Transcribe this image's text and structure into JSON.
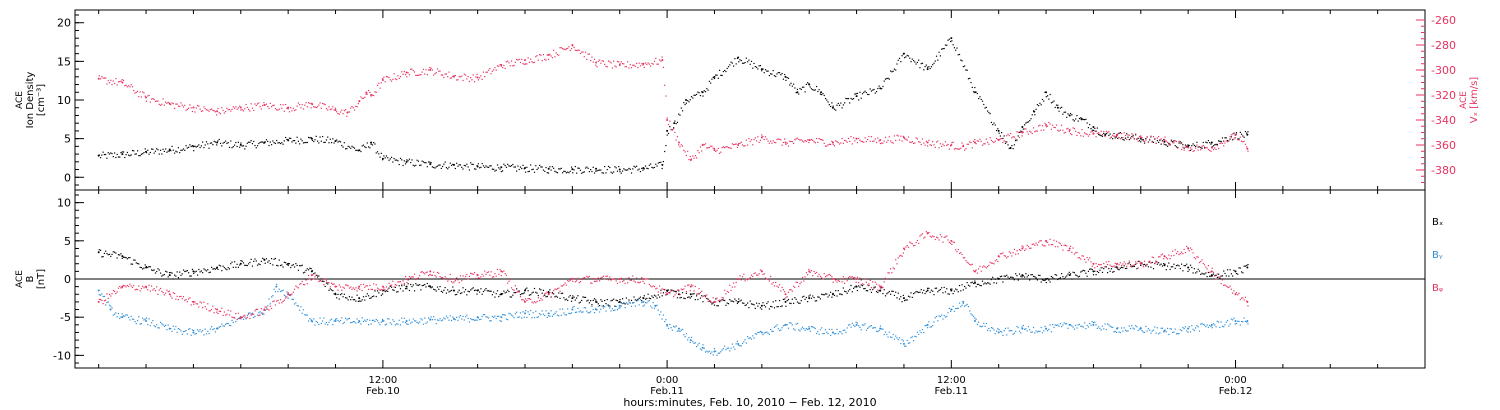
{
  "chart_data": [
    {
      "type": "scatter",
      "panel": "top",
      "left_axis": {
        "label_lines": [
          "ACE",
          "Ion Density",
          "[cm⁻³]"
        ],
        "ylim": [
          -1,
          21
        ],
        "major_ticks": [
          0,
          5,
          10,
          15,
          20
        ],
        "minor_step": 1
      },
      "right_axis": {
        "label_lines": [
          "ACE",
          "Vₓ [km/s]"
        ],
        "ylim": [
          -392,
          -256
        ],
        "major_ticks": [
          -380,
          -360,
          -340,
          -320,
          -300,
          -280,
          -260
        ],
        "minor_step": 5,
        "color": "#e8335f"
      },
      "series": [
        {
          "key": "density",
          "axis": "left",
          "color": "#000000",
          "x_hours": [
            0,
            1,
            2,
            3,
            4,
            5,
            6,
            7,
            8,
            9,
            10,
            11,
            11.5,
            12,
            13,
            14,
            15,
            16,
            17,
            18,
            19,
            20,
            21,
            22,
            23,
            23.8,
            24,
            24.3,
            24.8,
            25.5,
            26,
            27,
            28,
            29,
            29.5,
            30,
            30.5,
            31,
            32,
            33,
            34,
            35,
            36,
            37,
            38,
            38.5,
            39,
            39.5,
            40,
            40.5,
            41,
            41.5,
            42,
            42.5,
            43,
            44,
            45,
            46,
            47,
            48,
            48.5
          ],
          "y": [
            2.8,
            3,
            3.3,
            3.6,
            4,
            4.5,
            4.2,
            4.5,
            4.8,
            5,
            4.7,
            3.5,
            4.5,
            2.4,
            2,
            1.7,
            1.6,
            1.4,
            1.3,
            1.2,
            1.1,
            1.05,
            1.1,
            1,
            1.2,
            1.6,
            6,
            7,
            10,
            11,
            13,
            15.5,
            14,
            13,
            11,
            12,
            11,
            9,
            10.5,
            11.5,
            16,
            14,
            18,
            11,
            6,
            3.8,
            6.5,
            8.5,
            11,
            9,
            8,
            7.5,
            6.5,
            5.5,
            5.5,
            5,
            4.6,
            4,
            4.5,
            5.5,
            5.5
          ]
        },
        {
          "key": "velocity",
          "axis": "right",
          "color": "#e8335f",
          "x_hours": [
            0,
            1,
            2,
            3,
            4,
            5,
            6,
            7,
            8,
            9,
            10,
            10.5,
            11,
            11.3,
            11.5,
            12,
            13,
            14,
            15,
            16,
            17,
            18,
            19,
            20,
            21,
            22,
            23,
            23.8,
            24,
            24.5,
            25,
            25.5,
            26,
            27,
            28,
            29,
            30,
            31,
            32,
            33,
            34,
            35,
            36,
            36.5,
            37,
            38,
            39,
            40,
            41,
            42,
            43,
            44,
            45,
            46,
            47,
            48,
            48.5
          ],
          "y": [
            -307,
            -310,
            -322,
            -327,
            -330,
            -333,
            -330,
            -328,
            -330,
            -327,
            -332,
            -334,
            -325,
            -318,
            -320,
            -308,
            -302,
            -300,
            -305,
            -306,
            -296,
            -292,
            -288,
            -280,
            -294,
            -296,
            -295,
            -292,
            -340,
            -358,
            -372,
            -360,
            -364,
            -360,
            -354,
            -358,
            -356,
            -358,
            -355,
            -356,
            -354,
            -358,
            -360,
            -361,
            -358,
            -356,
            -350,
            -344,
            -348,
            -351,
            -352,
            -354,
            -356,
            -362,
            -362,
            -352,
            -363
          ]
        }
      ]
    },
    {
      "type": "scatter",
      "panel": "bottom",
      "left_axis": {
        "label_lines": [
          "ACE",
          "B",
          "[nT]"
        ],
        "ylim": [
          -11,
          11
        ],
        "major_ticks": [
          -10,
          -5,
          0,
          5,
          10
        ],
        "minor_step": 1,
        "zero_line": true
      },
      "legend_placement": "right",
      "series": [
        {
          "key": "bx",
          "name": "Bₓ",
          "color": "#000000",
          "x_hours": [
            0,
            1,
            2,
            3,
            4,
            5,
            6,
            7,
            8,
            9,
            10,
            11,
            12,
            13,
            14,
            15,
            16,
            17,
            18,
            19,
            20,
            21,
            22,
            23,
            24,
            24.5,
            25,
            26,
            27,
            28,
            29,
            30,
            31,
            32,
            33,
            34,
            35,
            36,
            37,
            38,
            39,
            40,
            41,
            42,
            43,
            44,
            45,
            46,
            47,
            48,
            48.5
          ],
          "y": [
            3.5,
            3,
            1.5,
            0.5,
            1,
            1.5,
            2,
            2.5,
            2,
            1,
            -2,
            -2.5,
            -1.5,
            -1,
            -1,
            -1.5,
            -1.5,
            -2,
            -1.5,
            -1.8,
            -2.5,
            -3,
            -3,
            -2.5,
            -1.5,
            -2,
            -2,
            -3,
            -3,
            -3.5,
            -3,
            -2.5,
            -2,
            -1,
            -1.5,
            -2.5,
            -1.5,
            -1.5,
            -0.5,
            0,
            0.5,
            0,
            0.5,
            1,
            1.5,
            2,
            1.8,
            1.5,
            0.5,
            1,
            1.5
          ]
        },
        {
          "key": "by",
          "name": "Bᵧ",
          "color": "#2f8fd8",
          "x_hours": [
            0,
            0.5,
            1,
            2,
            3,
            4,
            5,
            6,
            7,
            7.5,
            8,
            9,
            10,
            11,
            12,
            13,
            14,
            15,
            16,
            17,
            18,
            19,
            20,
            21,
            22,
            23,
            23.5,
            24,
            24.5,
            25,
            25.5,
            26,
            27,
            28,
            29,
            30,
            31,
            32,
            33,
            34,
            35,
            36,
            36.5,
            37,
            38,
            39,
            40,
            41,
            42,
            43,
            44,
            45,
            46,
            47,
            48,
            48.5
          ],
          "y": [
            -1.5,
            -4,
            -5,
            -5.5,
            -6.5,
            -7,
            -6.5,
            -5,
            -4,
            -1,
            -2,
            -5.5,
            -5.5,
            -5.5,
            -5.5,
            -5.5,
            -5.3,
            -5.2,
            -5,
            -5,
            -4.5,
            -4.5,
            -4,
            -4,
            -3.5,
            -3,
            -3.5,
            -6,
            -6.5,
            -8,
            -9,
            -9.5,
            -8.5,
            -7,
            -6,
            -6.5,
            -7,
            -6,
            -6.5,
            -8.5,
            -6,
            -4,
            -3,
            -5.5,
            -7,
            -6.5,
            -6.5,
            -6,
            -6,
            -6.5,
            -6.5,
            -6.8,
            -6.5,
            -6,
            -5.5,
            -5.5
          ]
        },
        {
          "key": "bz",
          "name": "Bᵩ",
          "color": "#e8335f",
          "x_hours": [
            0,
            1,
            2,
            3,
            4,
            5,
            6,
            7,
            8,
            9,
            10,
            11,
            12,
            13,
            14,
            15,
            16,
            17,
            18,
            19,
            20,
            21,
            22,
            23,
            24,
            25,
            26,
            27,
            28,
            29,
            30,
            31,
            32,
            33,
            34,
            35,
            36,
            37,
            38,
            39,
            40,
            41,
            42,
            43,
            44,
            45,
            46,
            47,
            48,
            48.5
          ],
          "y": [
            -3,
            -1,
            -1,
            -2,
            -3,
            -4,
            -5,
            -4,
            -2,
            0.5,
            -1,
            -1,
            -1,
            0,
            1,
            0,
            0.5,
            1,
            -3,
            -2,
            0,
            0,
            0,
            0,
            -2,
            -1,
            -3,
            0,
            1,
            -2,
            1,
            0,
            0,
            -1,
            4,
            6,
            5,
            1,
            3,
            4,
            5,
            4,
            2,
            2,
            2,
            3,
            4,
            1,
            -2,
            -3
          ]
        }
      ]
    }
  ],
  "x_axis": {
    "xlim_hours": [
      -1,
      56
    ],
    "major_ticks": [
      {
        "hours": 12,
        "line1": "12:00",
        "line2": "Feb.10"
      },
      {
        "hours": 24,
        "line1": "0:00",
        "line2": "Feb.11"
      },
      {
        "hours": 36,
        "line1": "12:00",
        "line2": "Feb.11"
      },
      {
        "hours": 48,
        "line1": "0:00",
        "line2": "Feb.12"
      }
    ],
    "minor_step_hours": 2,
    "label": "hours:minutes, Feb. 10, 2010 − Feb. 12, 2010"
  }
}
